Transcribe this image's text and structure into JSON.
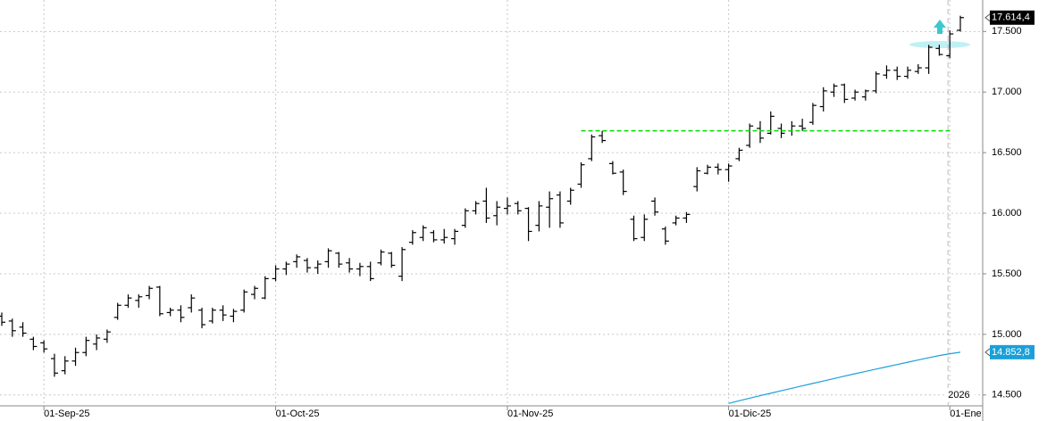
{
  "chart_data": {
    "type": "ohlc",
    "color": "#000000",
    "categories": [
      null,
      null,
      null,
      null,
      "01-Sep-25",
      null,
      null,
      null,
      null,
      null,
      null,
      null,
      null,
      null,
      null,
      null,
      null,
      null,
      null,
      null,
      null,
      null,
      null,
      null,
      null,
      null,
      "01-Oct-25",
      null,
      null,
      null,
      null,
      null,
      null,
      null,
      null,
      null,
      null,
      null,
      null,
      null,
      null,
      null,
      null,
      null,
      null,
      null,
      null,
      null,
      "01-Nov-25",
      null,
      null,
      null,
      null,
      null,
      null,
      null,
      null,
      null,
      null,
      null,
      null,
      null,
      null,
      null,
      null,
      null,
      null,
      null,
      null,
      "01-Dic-25",
      null,
      null,
      null,
      null,
      null,
      null,
      null,
      null,
      null,
      null,
      null,
      null,
      null,
      null,
      null,
      null,
      null,
      null,
      null,
      null,
      "01-Ene",
      null
    ],
    "open": [
      15150,
      15110,
      15060,
      14960,
      14930,
      14800,
      14700,
      14780,
      14850,
      14920,
      14960,
      15140,
      15240,
      15280,
      15320,
      15390,
      15180,
      15200,
      15220,
      15200,
      15110,
      15200,
      15150,
      15200,
      15330,
      15300,
      15460,
      15540,
      15600,
      15610,
      15550,
      15600,
      15670,
      15590,
      15540,
      15560,
      15590,
      15670,
      15480,
      15760,
      15800,
      15840,
      15780,
      15790,
      15900,
      16020,
      16100,
      15980,
      16040,
      16080,
      16040,
      15900,
      16050,
      16150,
      16100,
      16240,
      16450,
      16640,
      16410,
      16340,
      15950,
      15800,
      16100,
      15870,
      15920,
      15960,
      16220,
      16330,
      16380,
      16360,
      16450,
      16560,
      16700,
      16660,
      16700,
      16680,
      16720,
      16750,
      16880,
      17000,
      17060,
      16950,
      16960,
      17010,
      17140,
      17180,
      17130,
      17170,
      17200,
      17360,
      17300,
      17510
    ],
    "high": [
      15180,
      15130,
      15100,
      14980,
      14950,
      14840,
      14820,
      14890,
      14980,
      15000,
      15040,
      15260,
      15330,
      15330,
      15400,
      15400,
      15220,
      15240,
      15330,
      15220,
      15220,
      15240,
      15210,
      15370,
      15400,
      15480,
      15570,
      15600,
      15660,
      15630,
      15610,
      15710,
      15680,
      15630,
      15590,
      15600,
      15700,
      15680,
      15720,
      15860,
      15900,
      15860,
      15870,
      15870,
      16040,
      16100,
      16210,
      16100,
      16130,
      16100,
      16050,
      16100,
      16180,
      16180,
      16210,
      16420,
      16650,
      16680,
      16430,
      16360,
      15980,
      15990,
      16130,
      15890,
      15980,
      16010,
      16380,
      16400,
      16410,
      16410,
      16540,
      16740,
      16760,
      16840,
      16740,
      16760,
      16780,
      16910,
      17040,
      17070,
      17070,
      17020,
      17020,
      17170,
      17220,
      17210,
      17210,
      17230,
      17390,
      17390,
      17510,
      17630
    ],
    "low": [
      15070,
      14980,
      14980,
      14870,
      14850,
      14650,
      14670,
      14740,
      14820,
      14870,
      14930,
      15120,
      15220,
      15220,
      15290,
      15150,
      15150,
      15100,
      15180,
      15050,
      15090,
      15110,
      15100,
      15180,
      15290,
      15290,
      15440,
      15490,
      15550,
      15510,
      15500,
      15550,
      15550,
      15510,
      15480,
      15440,
      15570,
      15550,
      15440,
      15740,
      15770,
      15760,
      15750,
      15740,
      15880,
      15990,
      15920,
      15900,
      15990,
      15990,
      15770,
      15850,
      15880,
      15880,
      16070,
      16210,
      16430,
      16580,
      16320,
      16150,
      15770,
      15770,
      15980,
      15740,
      15900,
      15920,
      16180,
      16320,
      16320,
      16260,
      16430,
      16540,
      16580,
      16650,
      16620,
      16640,
      16680,
      16730,
      16840,
      16960,
      16910,
      16930,
      16930,
      16990,
      17110,
      17100,
      17110,
      17150,
      17150,
      17300,
      17280,
      17500
    ],
    "close": [
      15100,
      15030,
      15010,
      14900,
      14880,
      14680,
      14780,
      14850,
      14950,
      14970,
      15020,
      15240,
      15300,
      15310,
      15380,
      15170,
      15200,
      15140,
      15300,
      15080,
      15200,
      15160,
      15190,
      15350,
      15380,
      15460,
      15540,
      15580,
      15640,
      15550,
      15580,
      15690,
      15580,
      15540,
      15560,
      15460,
      15680,
      15570,
      15700,
      15840,
      15880,
      15780,
      15800,
      15850,
      16020,
      16080,
      15960,
      16050,
      16060,
      16020,
      15850,
      16060,
      16120,
      15920,
      16190,
      16400,
      16630,
      16600,
      16330,
      16180,
      15790,
      15950,
      16010,
      15770,
      15960,
      15990,
      16350,
      16380,
      16360,
      16390,
      16520,
      16720,
      16620,
      16800,
      16660,
      16720,
      16700,
      16890,
      17010,
      17050,
      16940,
      17000,
      17010,
      17150,
      17180,
      17130,
      17180,
      17200,
      17370,
      17310,
      17480,
      17614.4
    ],
    "overlay": {
      "color": "#1aa0d8",
      "values": [
        null,
        null,
        null,
        null,
        null,
        null,
        null,
        null,
        null,
        null,
        null,
        null,
        null,
        null,
        null,
        null,
        null,
        null,
        null,
        null,
        null,
        null,
        null,
        null,
        null,
        null,
        null,
        null,
        null,
        null,
        null,
        null,
        null,
        null,
        null,
        null,
        null,
        null,
        null,
        null,
        null,
        null,
        null,
        null,
        null,
        null,
        null,
        null,
        null,
        null,
        null,
        null,
        null,
        null,
        null,
        null,
        null,
        null,
        null,
        null,
        null,
        null,
        null,
        null,
        null,
        null,
        null,
        null,
        null,
        14430,
        14452,
        14473,
        14494,
        14514,
        14535,
        14555,
        14575,
        14595,
        14615,
        14635,
        14655,
        14675,
        14694,
        14713,
        14732,
        14751,
        14770,
        14789,
        14807,
        14825,
        14840,
        14852.8
      ]
    },
    "last_price": {
      "value": 17614.4,
      "label": "17.614,4"
    },
    "overlay_last": {
      "value": 14852.8,
      "label": "14.852,8"
    },
    "level_line": {
      "value": 16680,
      "from": 55,
      "to": 90,
      "color": "#00dd00"
    },
    "year_label": "2026",
    "ylim": [
      14410,
      17760
    ],
    "yticks": [
      {
        "value": 14500,
        "label": "14.500"
      },
      {
        "value": 15000,
        "label": "15.000"
      },
      {
        "value": 15500,
        "label": "15.500"
      },
      {
        "value": 16000,
        "label": "16.000"
      },
      {
        "value": 16500,
        "label": "16.500"
      },
      {
        "value": 17000,
        "label": "17.000"
      },
      {
        "value": 17500,
        "label": "17.500"
      }
    ],
    "grid": true
  }
}
